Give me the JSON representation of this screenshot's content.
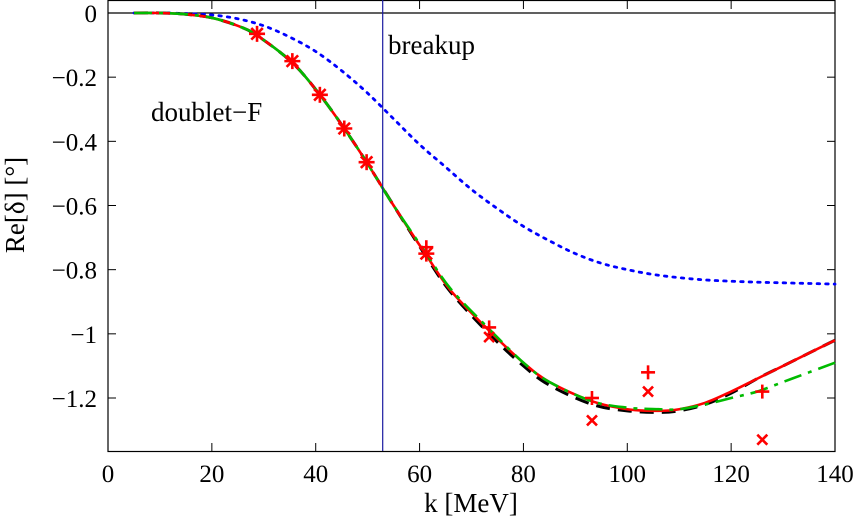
{
  "chart_data": {
    "type": "line",
    "title": "",
    "xlabel": "k [MeV]",
    "ylabel": "Re[δ] [°]",
    "xlim": [
      0,
      140
    ],
    "ylim": [
      -1.35,
      0
    ],
    "xticks": [
      0,
      20,
      40,
      60,
      80,
      100,
      120,
      140
    ],
    "yticks": [
      0,
      -0.2,
      -0.4,
      -0.6,
      -0.8,
      -1,
      -1.2
    ],
    "xtick_labels": [
      "0",
      "20",
      "40",
      "60",
      "80",
      "100",
      "120",
      "140"
    ],
    "ytick_labels": [
      "0",
      "−0.2",
      "−0.4",
      "−0.6",
      "−0.8",
      "−1",
      "−1.2"
    ],
    "annotations": {
      "breakup_label": "breakup",
      "breakup_k": 52.9,
      "wave_label": "doublet−F"
    },
    "series": [
      {
        "name": "blue dotted",
        "style": "dotted",
        "color": "#0000ff",
        "x": [
          5,
          10,
          15,
          20,
          25,
          30,
          35,
          40,
          45,
          50,
          55,
          60,
          65,
          70,
          75,
          80,
          85,
          90,
          95,
          100,
          105,
          110,
          115,
          120,
          125,
          130,
          135,
          140
        ],
        "y": [
          0,
          0,
          -0.002,
          -0.006,
          -0.018,
          -0.04,
          -0.075,
          -0.12,
          -0.18,
          -0.25,
          -0.33,
          -0.41,
          -0.48,
          -0.55,
          -0.61,
          -0.665,
          -0.71,
          -0.75,
          -0.78,
          -0.8,
          -0.815,
          -0.825,
          -0.832,
          -0.836,
          -0.839,
          -0.841,
          -0.843,
          -0.845
        ]
      },
      {
        "name": "black dashed",
        "style": "dashed",
        "color": "#000000",
        "x": [
          5,
          10,
          15,
          20,
          25,
          28.7,
          35.5,
          40.8,
          45.5,
          49.8,
          55,
          61.3,
          66,
          73.4,
          80,
          85,
          93.2,
          100,
          106,
          110,
          115,
          120,
          125,
          130,
          135,
          140
        ],
        "y": [
          0,
          0,
          -0.004,
          -0.015,
          -0.04,
          -0.07,
          -0.155,
          -0.255,
          -0.36,
          -0.465,
          -0.6,
          -0.76,
          -0.87,
          -1.0,
          -1.1,
          -1.16,
          -1.22,
          -1.24,
          -1.245,
          -1.24,
          -1.22,
          -1.185,
          -1.14,
          -1.1,
          -1.06,
          -1.02
        ]
      },
      {
        "name": "red solid",
        "style": "solid",
        "color": "#ff0000",
        "x": [
          5,
          10,
          15,
          20,
          25,
          28.7,
          35.5,
          40.8,
          45.5,
          49.8,
          55,
          61.3,
          66,
          73.4,
          80,
          85,
          93.2,
          100,
          106,
          110,
          115,
          120,
          125,
          130,
          135,
          140
        ],
        "y": [
          0,
          0,
          -0.004,
          -0.015,
          -0.04,
          -0.07,
          -0.155,
          -0.255,
          -0.36,
          -0.465,
          -0.6,
          -0.755,
          -0.865,
          -0.99,
          -1.09,
          -1.15,
          -1.21,
          -1.235,
          -1.24,
          -1.235,
          -1.215,
          -1.18,
          -1.14,
          -1.1,
          -1.06,
          -1.02
        ]
      },
      {
        "name": "green dash-dot",
        "style": "dashdot",
        "color": "#00bb00",
        "x": [
          5,
          10,
          15,
          20,
          25,
          28.7,
          35.5,
          40.8,
          45.5,
          49.8,
          55,
          61.3,
          66,
          73.4,
          80,
          85,
          93.2,
          100,
          106,
          110,
          115,
          120,
          125,
          130,
          135,
          140
        ],
        "y": [
          0,
          0,
          -0.004,
          -0.015,
          -0.04,
          -0.07,
          -0.155,
          -0.255,
          -0.36,
          -0.465,
          -0.6,
          -0.75,
          -0.86,
          -0.985,
          -1.09,
          -1.15,
          -1.21,
          -1.23,
          -1.235,
          -1.235,
          -1.22,
          -1.2,
          -1.18,
          -1.15,
          -1.12,
          -1.09
        ]
      }
    ],
    "markers": [
      {
        "name": "asterisk points",
        "shape": "asterisk",
        "color": "#ff0000",
        "x": [
          28.7,
          35.5,
          40.8,
          45.5,
          49.8,
          61.3
        ],
        "y": [
          -0.065,
          -0.15,
          -0.255,
          -0.36,
          -0.465,
          -0.75
        ]
      },
      {
        "name": "plus points",
        "shape": "plus",
        "color": "#ff0000",
        "x": [
          61.3,
          73.4,
          93.2,
          104,
          126
        ],
        "y": [
          -0.73,
          -0.98,
          -1.2,
          -1.12,
          -1.18
        ]
      },
      {
        "name": "cross points",
        "shape": "cross",
        "color": "#ff0000",
        "x": [
          73.4,
          93.2,
          104,
          126
        ],
        "y": [
          -1.01,
          -1.27,
          -1.18,
          -1.33
        ]
      }
    ]
  }
}
